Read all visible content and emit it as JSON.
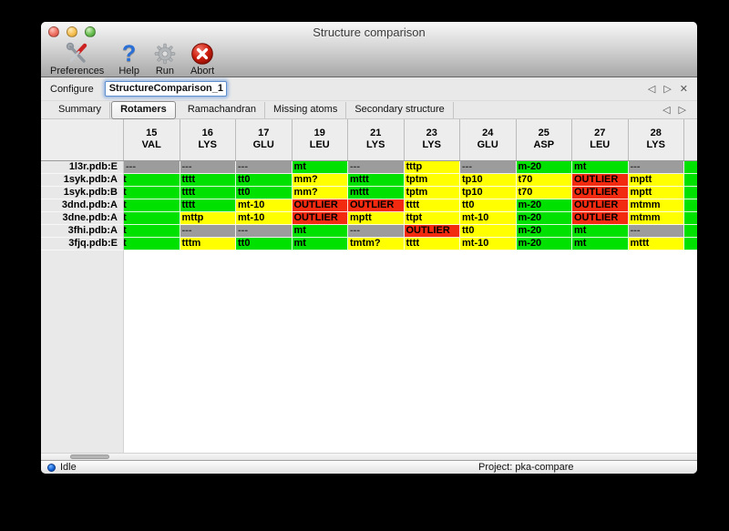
{
  "window": {
    "title": "Structure comparison"
  },
  "toolbar": {
    "items": [
      {
        "label": "Preferences",
        "icon": "tools-icon"
      },
      {
        "label": "Help",
        "icon": "question-mark-icon",
        "glyph": "?"
      },
      {
        "label": "Run",
        "icon": "gear-icon"
      },
      {
        "label": "Abort",
        "icon": "abort-icon"
      }
    ]
  },
  "configure": {
    "label": "Configure",
    "value": "StructureComparison_1",
    "nav": {
      "back": "◁",
      "forward": "▷",
      "close": "✕"
    }
  },
  "tab_bar": {
    "tabs": [
      {
        "label": "Summary",
        "active": false
      },
      {
        "label": "Rotamers",
        "active": true
      },
      {
        "label": "Ramachandran",
        "active": false
      },
      {
        "label": "Missing atoms",
        "active": false
      },
      {
        "label": "Secondary structure",
        "active": false
      }
    ],
    "nav": {
      "back": "◁",
      "forward": "▷"
    }
  },
  "colors": {
    "green": "#00e100",
    "yellow": "#ffff00",
    "red": "#f12a10",
    "gray": "#9c9c9c"
  },
  "table": {
    "columns": [
      {
        "residue_number": "15",
        "residue_name": "VAL"
      },
      {
        "residue_number": "16",
        "residue_name": "LYS"
      },
      {
        "residue_number": "17",
        "residue_name": "GLU"
      },
      {
        "residue_number": "19",
        "residue_name": "LEU"
      },
      {
        "residue_number": "21",
        "residue_name": "LYS"
      },
      {
        "residue_number": "23",
        "residue_name": "LYS"
      },
      {
        "residue_number": "24",
        "residue_name": "GLU"
      },
      {
        "residue_number": "25",
        "residue_name": "ASP"
      },
      {
        "residue_number": "27",
        "residue_name": "LEU"
      },
      {
        "residue_number": "28",
        "residue_name": "LYS"
      }
    ],
    "rows": [
      {
        "name": "1l3r.pdb:E",
        "cells": [
          {
            "text": "---",
            "color": "gray"
          },
          {
            "text": "---",
            "color": "gray"
          },
          {
            "text": "---",
            "color": "gray"
          },
          {
            "text": "mt",
            "color": "green"
          },
          {
            "text": "---",
            "color": "gray"
          },
          {
            "text": "tttp",
            "color": "yellow"
          },
          {
            "text": "---",
            "color": "gray"
          },
          {
            "text": "m-20",
            "color": "green"
          },
          {
            "text": "mt",
            "color": "green"
          },
          {
            "text": "---",
            "color": "gray"
          }
        ]
      },
      {
        "name": "1syk.pdb:A",
        "cells": [
          {
            "text": "t",
            "color": "green",
            "clipped": true
          },
          {
            "text": "tttt",
            "color": "green"
          },
          {
            "text": "tt0",
            "color": "green"
          },
          {
            "text": "mm?",
            "color": "yellow"
          },
          {
            "text": "mttt",
            "color": "green"
          },
          {
            "text": "tptm",
            "color": "yellow"
          },
          {
            "text": "tp10",
            "color": "yellow"
          },
          {
            "text": "t70",
            "color": "yellow"
          },
          {
            "text": "OUTLIER",
            "color": "red"
          },
          {
            "text": "mptt",
            "color": "yellow"
          }
        ]
      },
      {
        "name": "1syk.pdb:B",
        "cells": [
          {
            "text": "t",
            "color": "green",
            "clipped": true
          },
          {
            "text": "tttt",
            "color": "green"
          },
          {
            "text": "tt0",
            "color": "green"
          },
          {
            "text": "mm?",
            "color": "yellow"
          },
          {
            "text": "mttt",
            "color": "green"
          },
          {
            "text": "tptm",
            "color": "yellow"
          },
          {
            "text": "tp10",
            "color": "yellow"
          },
          {
            "text": "t70",
            "color": "yellow"
          },
          {
            "text": "OUTLIER",
            "color": "red"
          },
          {
            "text": "mptt",
            "color": "yellow"
          }
        ]
      },
      {
        "name": "3dnd.pdb:A",
        "cells": [
          {
            "text": "t",
            "color": "green",
            "clipped": true
          },
          {
            "text": "tttt",
            "color": "green"
          },
          {
            "text": "mt-10",
            "color": "yellow"
          },
          {
            "text": "OUTLIER",
            "color": "red"
          },
          {
            "text": "OUTLIER",
            "color": "red"
          },
          {
            "text": "tttt",
            "color": "yellow"
          },
          {
            "text": "tt0",
            "color": "yellow"
          },
          {
            "text": "m-20",
            "color": "green"
          },
          {
            "text": "OUTLIER",
            "color": "red"
          },
          {
            "text": "mtmm",
            "color": "yellow"
          }
        ]
      },
      {
        "name": "3dne.pdb:A",
        "cells": [
          {
            "text": "t",
            "color": "green",
            "clipped": true
          },
          {
            "text": "mttp",
            "color": "yellow"
          },
          {
            "text": "mt-10",
            "color": "yellow"
          },
          {
            "text": "OUTLIER",
            "color": "red"
          },
          {
            "text": "mptt",
            "color": "yellow"
          },
          {
            "text": "ttpt",
            "color": "yellow"
          },
          {
            "text": "mt-10",
            "color": "yellow"
          },
          {
            "text": "m-20",
            "color": "green"
          },
          {
            "text": "OUTLIER",
            "color": "red"
          },
          {
            "text": "mtmm",
            "color": "yellow"
          }
        ]
      },
      {
        "name": "3fhi.pdb:A",
        "cells": [
          {
            "text": "t",
            "color": "green",
            "clipped": true
          },
          {
            "text": "---",
            "color": "gray"
          },
          {
            "text": "---",
            "color": "gray"
          },
          {
            "text": "mt",
            "color": "green"
          },
          {
            "text": "---",
            "color": "gray"
          },
          {
            "text": "OUTLIER",
            "color": "red"
          },
          {
            "text": "tt0",
            "color": "yellow"
          },
          {
            "text": "m-20",
            "color": "green"
          },
          {
            "text": "mt",
            "color": "green"
          },
          {
            "text": "---",
            "color": "gray"
          }
        ]
      },
      {
        "name": "3fjq.pdb:E",
        "cells": [
          {
            "text": "t",
            "color": "green",
            "clipped": true
          },
          {
            "text": "tttm",
            "color": "yellow"
          },
          {
            "text": "tt0",
            "color": "green"
          },
          {
            "text": "mt",
            "color": "green"
          },
          {
            "text": "tmtm?",
            "color": "yellow"
          },
          {
            "text": "tttt",
            "color": "yellow"
          },
          {
            "text": "mt-10",
            "color": "yellow"
          },
          {
            "text": "m-20",
            "color": "green"
          },
          {
            "text": "mt",
            "color": "green"
          },
          {
            "text": "mttt",
            "color": "yellow"
          }
        ]
      }
    ],
    "overflow_column": {
      "color": "green",
      "text": ""
    }
  },
  "status_bar": {
    "state": "Idle",
    "project": "Project: pka-compare"
  }
}
